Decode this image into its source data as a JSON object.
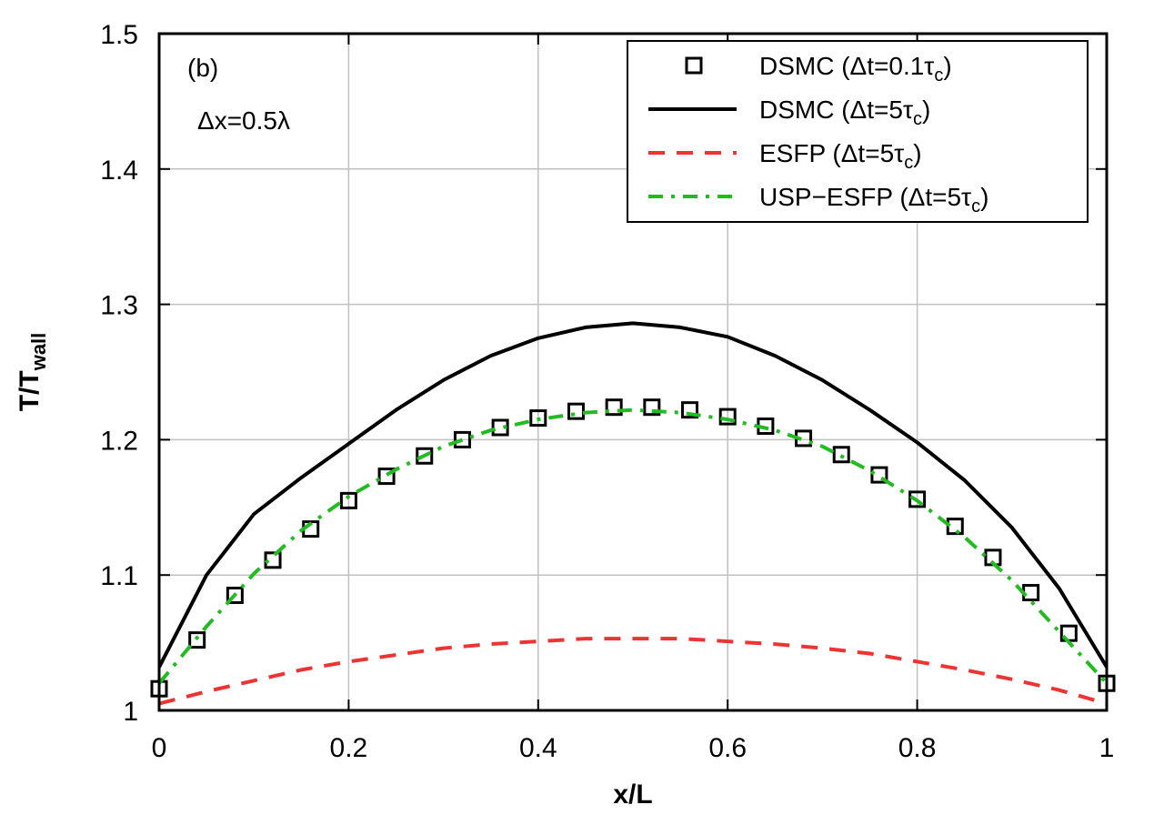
{
  "chart_data": {
    "type": "line",
    "xlabel": "x/L",
    "ylabel_main": "T/T",
    "ylabel_sub": "wall",
    "xlim": [
      0,
      1
    ],
    "ylim": [
      1,
      1.5
    ],
    "xticks": [
      "0",
      "0.2",
      "0.4",
      "0.6",
      "0.8",
      "1"
    ],
    "yticks": [
      "1",
      "1.1",
      "1.2",
      "1.3",
      "1.4",
      "1.5"
    ],
    "grid": true,
    "legend_position": "top-right",
    "annotations": [
      {
        "text": "(b)"
      },
      {
        "text": "Δx=0.5λ"
      }
    ],
    "series": [
      {
        "name_main": "DSMC (Δt=0.1τ",
        "name_sub": "c",
        "name_end": ")",
        "style": "squares",
        "color": "#000000",
        "x": [
          0,
          0.04,
          0.08,
          0.12,
          0.16,
          0.2,
          0.24,
          0.28,
          0.32,
          0.36,
          0.4,
          0.44,
          0.48,
          0.52,
          0.56,
          0.6,
          0.64,
          0.68,
          0.72,
          0.76,
          0.8,
          0.84,
          0.88,
          0.92,
          0.96,
          1
        ],
        "y": [
          1.016,
          1.052,
          1.085,
          1.111,
          1.134,
          1.155,
          1.173,
          1.188,
          1.2,
          1.209,
          1.216,
          1.221,
          1.224,
          1.224,
          1.222,
          1.217,
          1.21,
          1.201,
          1.189,
          1.174,
          1.156,
          1.136,
          1.113,
          1.087,
          1.057,
          1.02
        ]
      },
      {
        "name_main": "DSMC (Δt=5τ",
        "name_sub": "c",
        "name_end": ")",
        "style": "solid",
        "color": "#000000",
        "x": [
          0,
          0.05,
          0.1,
          0.15,
          0.2,
          0.25,
          0.3,
          0.35,
          0.4,
          0.45,
          0.5,
          0.55,
          0.6,
          0.65,
          0.7,
          0.75,
          0.8,
          0.85,
          0.9,
          0.95,
          1
        ],
        "y": [
          1.032,
          1.1,
          1.145,
          1.172,
          1.197,
          1.222,
          1.244,
          1.262,
          1.275,
          1.283,
          1.286,
          1.283,
          1.276,
          1.262,
          1.244,
          1.222,
          1.198,
          1.17,
          1.135,
          1.09,
          1.032
        ]
      },
      {
        "name_main": "ESFP (Δt=5τ",
        "name_sub": "c",
        "name_end": ")",
        "style": "dashed",
        "color": "#ee3333",
        "x": [
          0,
          0.05,
          0.1,
          0.15,
          0.2,
          0.25,
          0.3,
          0.35,
          0.4,
          0.45,
          0.5,
          0.55,
          0.6,
          0.65,
          0.7,
          0.75,
          0.8,
          0.85,
          0.9,
          0.95,
          1
        ],
        "y": [
          1.005,
          1.014,
          1.022,
          1.03,
          1.036,
          1.041,
          1.046,
          1.049,
          1.051,
          1.053,
          1.053,
          1.053,
          1.051,
          1.049,
          1.046,
          1.042,
          1.036,
          1.03,
          1.023,
          1.015,
          1.005
        ]
      },
      {
        "name_main": "USP−ESFP (Δt=5τ",
        "name_sub": "c",
        "name_end": ")",
        "style": "dashdot",
        "color": "#22bb22",
        "x": [
          0,
          0.05,
          0.1,
          0.15,
          0.2,
          0.25,
          0.3,
          0.35,
          0.4,
          0.45,
          0.5,
          0.55,
          0.6,
          0.65,
          0.7,
          0.75,
          0.8,
          0.85,
          0.9,
          0.95,
          1
        ],
        "y": [
          1.02,
          1.062,
          1.101,
          1.133,
          1.158,
          1.178,
          1.195,
          1.207,
          1.215,
          1.22,
          1.222,
          1.22,
          1.215,
          1.207,
          1.195,
          1.177,
          1.155,
          1.128,
          1.096,
          1.058,
          1.02
        ]
      }
    ]
  }
}
